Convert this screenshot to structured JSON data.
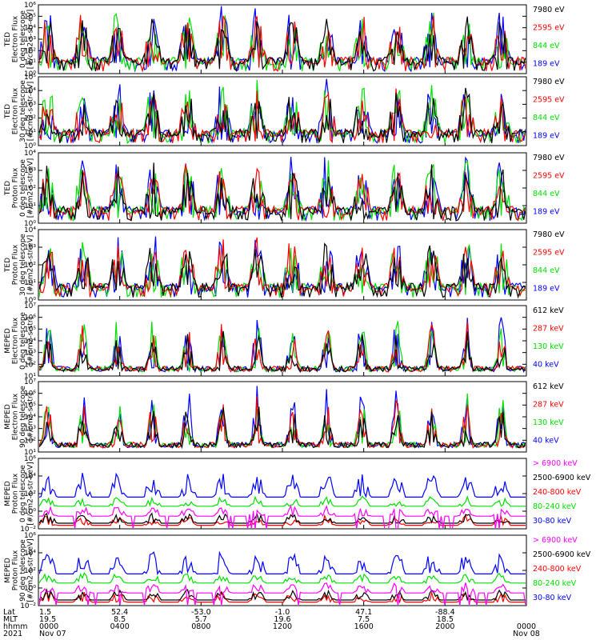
{
  "chart_data": [
    {
      "type": "line",
      "ylabel": [
        "TED",
        "Electron Flux",
        "0 deg telescope",
        "[#/cm2-s-str-eV]"
      ],
      "y_log": true,
      "ylim": [
        1.0,
        1000000.0
      ],
      "yticks": [
        "10⁰",
        "10¹",
        "10²",
        "10³",
        "10⁴",
        "10⁵",
        "10⁶"
      ],
      "series": [
        {
          "name": "7980 eV",
          "color": "#000000"
        },
        {
          "name": "2595 eV",
          "color": "#ff0000"
        },
        {
          "name": "844 eV",
          "color": "#00e000"
        },
        {
          "name": "189 eV",
          "color": "#0000ff"
        }
      ]
    },
    {
      "type": "line",
      "ylabel": [
        "TED",
        "Electron Flux",
        "30 deg telescope",
        "[#/cm2-s-str-eV]"
      ],
      "y_log": true,
      "ylim": [
        1.0,
        100000.0
      ],
      "yticks": [
        "10⁰",
        "10¹",
        "10²",
        "10³",
        "10⁴",
        "10⁵"
      ],
      "series": [
        {
          "name": "7980 eV",
          "color": "#000000"
        },
        {
          "name": "2595 eV",
          "color": "#ff0000"
        },
        {
          "name": "844 eV",
          "color": "#00e000"
        },
        {
          "name": "189 eV",
          "color": "#0000ff"
        }
      ]
    },
    {
      "type": "line",
      "ylabel": [
        "TED",
        "Proton Flux",
        "0 deg telescope",
        "[#/cm2-s-str-eV]"
      ],
      "y_log": true,
      "ylim": [
        1.0,
        10000.0
      ],
      "yticks": [
        "10⁰",
        "10¹",
        "10²",
        "10³",
        "10⁴"
      ],
      "series": [
        {
          "name": "7980 eV",
          "color": "#000000"
        },
        {
          "name": "2595 eV",
          "color": "#ff0000"
        },
        {
          "name": "844 eV",
          "color": "#00e000"
        },
        {
          "name": "189 eV",
          "color": "#0000ff"
        }
      ]
    },
    {
      "type": "line",
      "ylabel": [
        "TED",
        "Proton Flux",
        "30 deg telescope",
        "[#/cm2-s-str-eV]"
      ],
      "y_log": true,
      "ylim": [
        1.0,
        10000.0
      ],
      "yticks": [
        "10⁰",
        "10¹",
        "10²",
        "10³",
        "10⁴"
      ],
      "series": [
        {
          "name": "7980 eV",
          "color": "#000000"
        },
        {
          "name": "2595 eV",
          "color": "#ff0000"
        },
        {
          "name": "844 eV",
          "color": "#00e000"
        },
        {
          "name": "189 eV",
          "color": "#0000ff"
        }
      ]
    },
    {
      "type": "line",
      "ylabel": [
        "MEPED",
        "Electron Flux",
        "0 deg telescope",
        "[#/cm2-s-str]"
      ],
      "y_log": true,
      "ylim": [
        10.0,
        10000000.0
      ],
      "yticks": [
        "10¹",
        "10²",
        "10³",
        "10⁴",
        "10⁵",
        "10⁶",
        "10⁷"
      ],
      "series": [
        {
          "name": "612 keV",
          "color": "#000000"
        },
        {
          "name": "287 keV",
          "color": "#ff0000"
        },
        {
          "name": "130 keV",
          "color": "#00e000"
        },
        {
          "name": "40 keV",
          "color": "#0000ff"
        }
      ]
    },
    {
      "type": "line",
      "ylabel": [
        "MEPED",
        "Electron Flux",
        "90 deg telescope",
        "[#/cm2-s-str]"
      ],
      "y_log": true,
      "ylim": [
        10.0,
        10000000.0
      ],
      "yticks": [
        "10¹",
        "10²",
        "10³",
        "10⁴",
        "10⁵",
        "10⁶",
        "10⁷"
      ],
      "series": [
        {
          "name": "612 keV",
          "color": "#000000"
        },
        {
          "name": "287 keV",
          "color": "#ff0000"
        },
        {
          "name": "130 keV",
          "color": "#00e000"
        },
        {
          "name": "40 keV",
          "color": "#0000ff"
        }
      ]
    },
    {
      "type": "line",
      "ylabel": [
        "MEPED",
        "Proton Flux",
        "0 deg telescope",
        "[#/cm2-s-str-keV]"
      ],
      "y_log": true,
      "ylim": [
        0.01,
        1000000.0
      ],
      "yticks": [
        "10⁻²",
        "10⁰",
        "10²",
        "10⁴",
        "10⁶"
      ],
      "series": [
        {
          "name": "> 6900 keV",
          "color": "#ff00ff"
        },
        {
          "name": "2500-6900 keV",
          "color": "#000000"
        },
        {
          "name": "240-800 keV",
          "color": "#ff0000"
        },
        {
          "name": "80-240 keV",
          "color": "#00e000"
        },
        {
          "name": "30-80 keV",
          "color": "#0000ff"
        }
      ]
    },
    {
      "type": "line",
      "ylabel": [
        "MEPED",
        "Proton Flux",
        "90 deg telescope",
        "[#/cm2-s-str-keV]"
      ],
      "y_log": true,
      "ylim": [
        0.01,
        1000000.0
      ],
      "yticks": [
        "10⁻²",
        "10⁰",
        "10²",
        "10⁴",
        "10⁶"
      ],
      "series": [
        {
          "name": "> 6900 keV",
          "color": "#ff00ff"
        },
        {
          "name": "2500-6900 keV",
          "color": "#000000"
        },
        {
          "name": "240-800 keV",
          "color": "#ff0000"
        },
        {
          "name": "80-240 keV",
          "color": "#00e000"
        },
        {
          "name": "30-80 keV",
          "color": "#0000ff"
        }
      ]
    }
  ],
  "x_axis": {
    "row_labels": [
      "Lat",
      "MLT",
      "hhmm",
      "2021"
    ],
    "ticks": [
      {
        "lat": "1.5",
        "mlt": "19.5",
        "hhmm": "0000",
        "date": "Nov 07"
      },
      {
        "lat": "52.4",
        "mlt": "8.5",
        "hhmm": "0400",
        "date": ""
      },
      {
        "lat": "-53.0",
        "mlt": "5.7",
        "hhmm": "0800",
        "date": ""
      },
      {
        "lat": "-1.0",
        "mlt": "19.6",
        "hhmm": "1200",
        "date": ""
      },
      {
        "lat": "47.1",
        "mlt": "7.5",
        "hhmm": "1600",
        "date": ""
      },
      {
        "lat": "-88.4",
        "mlt": "18.5",
        "hhmm": "2000",
        "date": ""
      },
      {
        "lat": "",
        "mlt": "",
        "hhmm": "0000",
        "date": "Nov 08"
      }
    ]
  }
}
